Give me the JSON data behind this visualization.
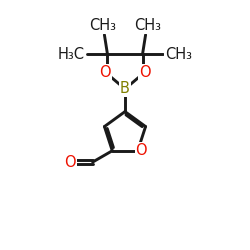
{
  "bg_color": "#ffffff",
  "bond_color": "#1a1a1a",
  "bond_lw": 2.1,
  "O_color": "#ee1100",
  "B_color": "#808000",
  "C_color": "#1a1a1a",
  "label_fontsize": 10.5,
  "figsize": [
    2.5,
    2.5
  ],
  "dpi": 100,
  "xlim": [
    -1,
    11
  ],
  "ylim": [
    -0.5,
    10.5
  ]
}
